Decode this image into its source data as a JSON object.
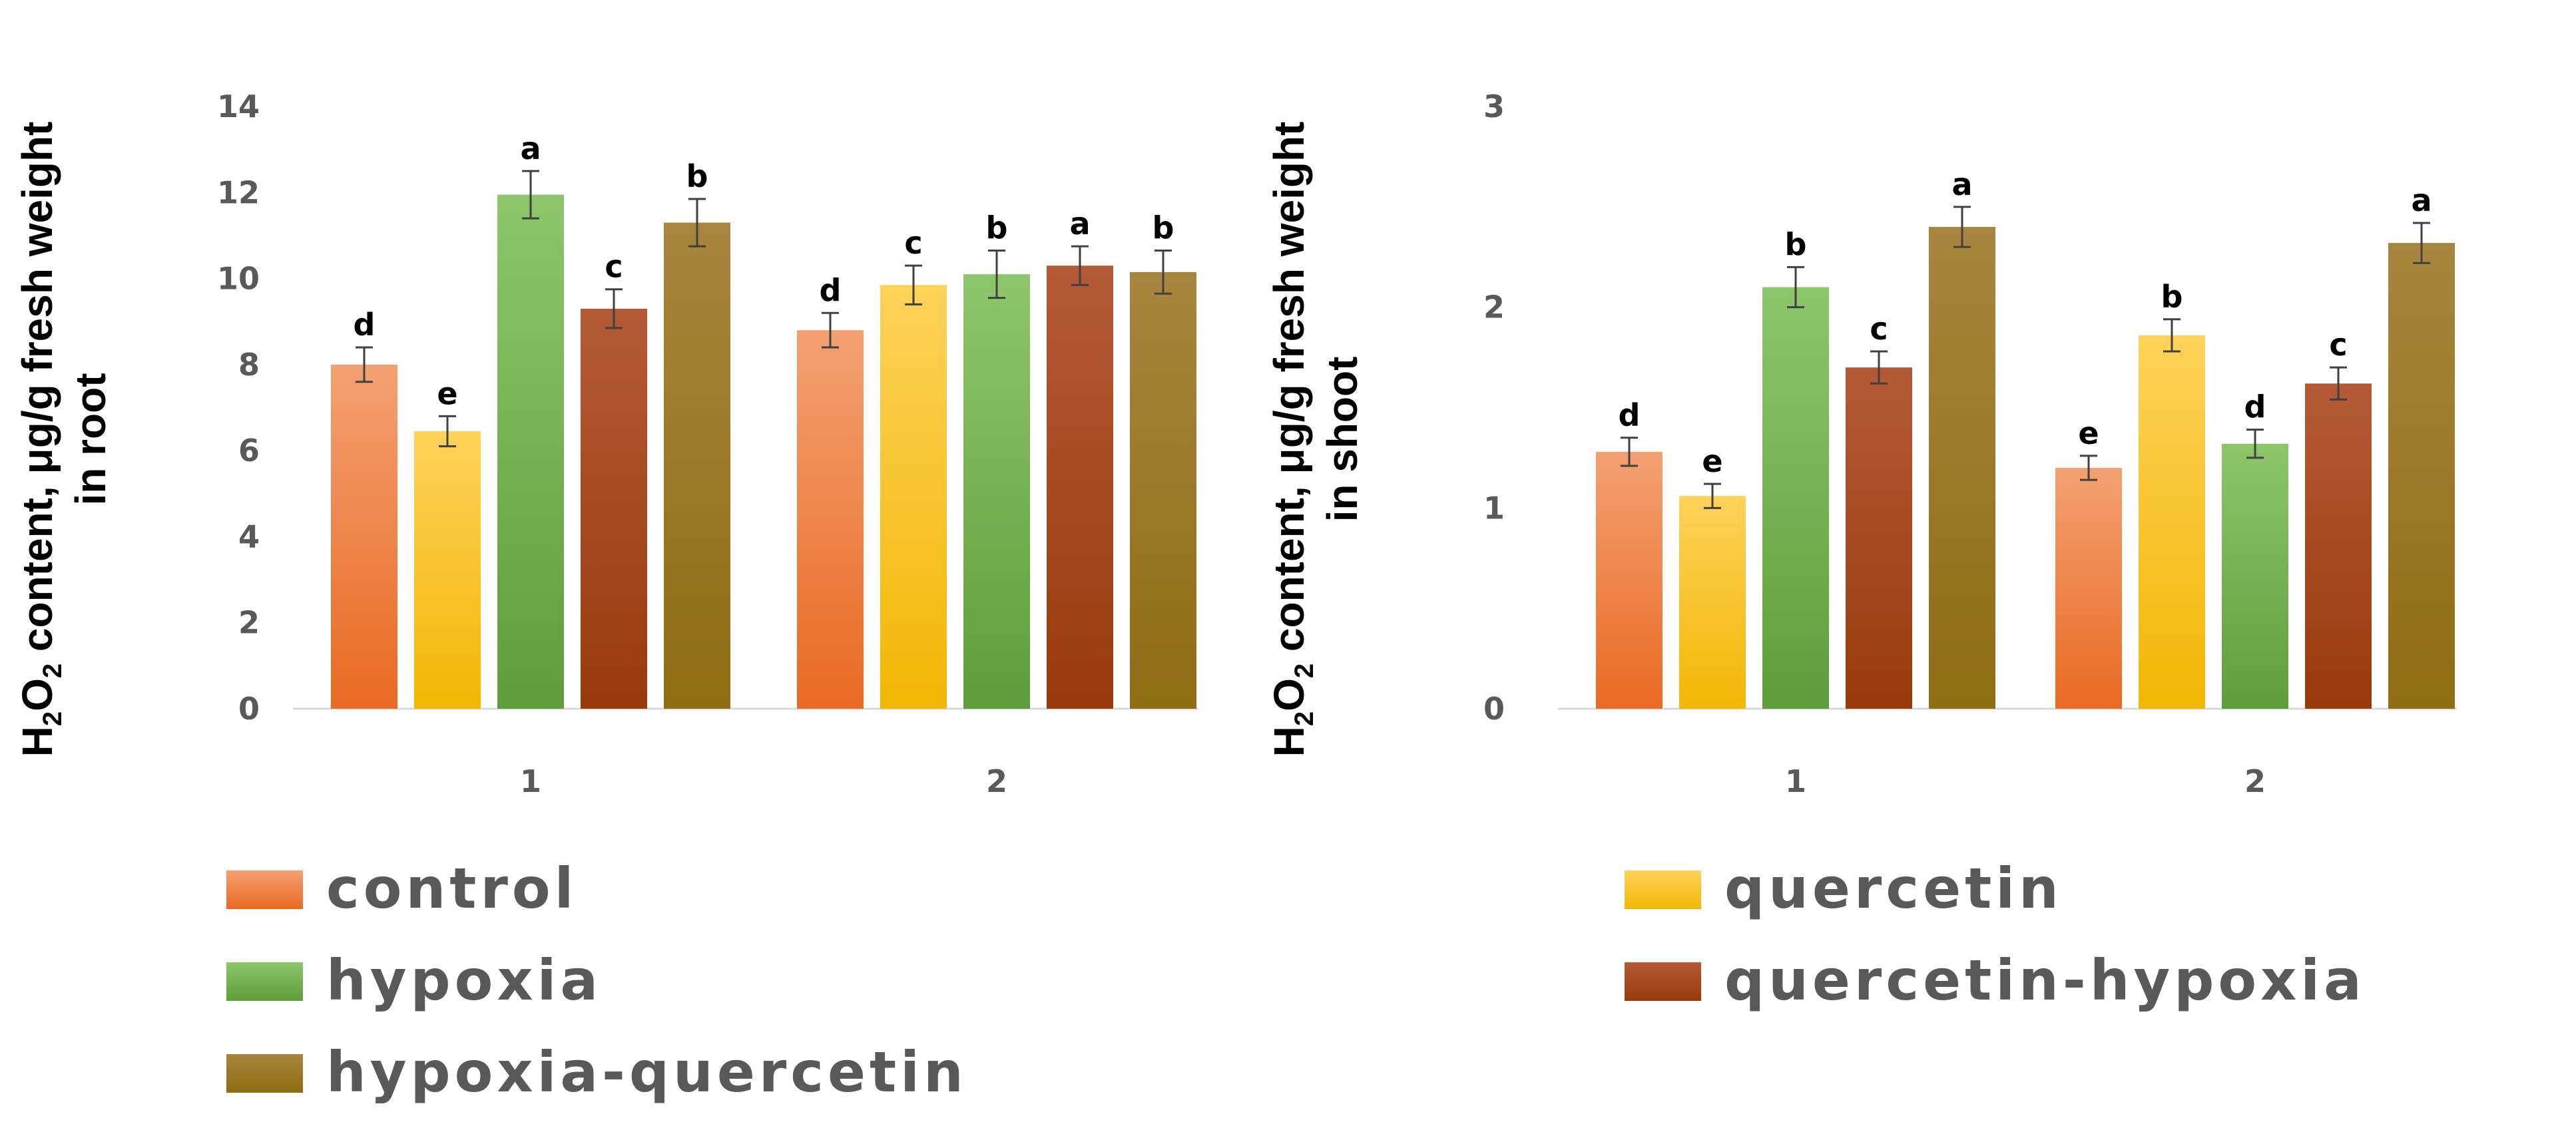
{
  "palette": {
    "control": {
      "top": "#f4a072",
      "bottom": "#e96a22"
    },
    "quercetin": {
      "top": "#ffd25a",
      "bottom": "#f2b705"
    },
    "hypoxia": {
      "top": "#8dc66c",
      "bottom": "#5e9e3a"
    },
    "quercetin-hypoxia": {
      "top": "#b45a36",
      "bottom": "#983a0c"
    },
    "hypoxia-quercetin": {
      "top": "#a8853e",
      "bottom": "#8f6d12"
    }
  },
  "legend": {
    "items": [
      {
        "key": "control",
        "label": "control"
      },
      {
        "key": "quercetin",
        "label": "quercetin"
      },
      {
        "key": "hypoxia",
        "label": "hypoxia"
      },
      {
        "key": "quercetin-hypoxia",
        "label": "quercetin-hypoxia"
      },
      {
        "key": "hypoxia-quercetin",
        "label": "hypoxia-quercetin"
      }
    ]
  },
  "chart_data": [
    {
      "type": "bar",
      "ylabel_parts": {
        "pre": "H",
        "sub": "2",
        "mid": "O",
        "sub2": "2",
        "post": " content, μg/g fresh weight"
      },
      "ylabel_line2": "in root",
      "ylim": [
        0,
        14
      ],
      "yticks": [
        0,
        2,
        4,
        6,
        8,
        10,
        12,
        14
      ],
      "grid": false,
      "categories": [
        "1",
        "2"
      ],
      "series": [
        {
          "name": "control",
          "values": [
            8.0,
            8.8
          ],
          "errors": [
            0.4,
            0.4
          ],
          "labels": [
            "d",
            "d"
          ]
        },
        {
          "name": "quercetin",
          "values": [
            6.45,
            9.85
          ],
          "errors": [
            0.35,
            0.45
          ],
          "labels": [
            "e",
            "c"
          ]
        },
        {
          "name": "hypoxia",
          "values": [
            11.95,
            10.1
          ],
          "errors": [
            0.55,
            0.55
          ],
          "labels": [
            "a",
            "b"
          ]
        },
        {
          "name": "quercetin-hypoxia",
          "values": [
            9.3,
            10.3
          ],
          "errors": [
            0.45,
            0.45
          ],
          "labels": [
            "c",
            "a"
          ]
        },
        {
          "name": "hypoxia-quercetin",
          "values": [
            11.3,
            10.15
          ],
          "errors": [
            0.55,
            0.5
          ],
          "labels": [
            "b",
            "b"
          ]
        }
      ]
    },
    {
      "type": "bar",
      "ylabel_parts": {
        "pre": "H",
        "sub": "2",
        "mid": "O",
        "sub2": "2",
        "post": " content, μg/g fresh weight"
      },
      "ylabel_line2": "in shoot",
      "ylim": [
        0,
        3
      ],
      "yticks": [
        0,
        1,
        2,
        3
      ],
      "grid": false,
      "categories": [
        "1",
        "2"
      ],
      "series": [
        {
          "name": "control",
          "values": [
            1.28,
            1.2
          ],
          "errors": [
            0.07,
            0.06
          ],
          "labels": [
            "d",
            "e"
          ]
        },
        {
          "name": "quercetin",
          "values": [
            1.06,
            1.86
          ],
          "errors": [
            0.06,
            0.08
          ],
          "labels": [
            "e",
            "b"
          ]
        },
        {
          "name": "hypoxia",
          "values": [
            2.1,
            1.32
          ],
          "errors": [
            0.1,
            0.07
          ],
          "labels": [
            "b",
            "d"
          ]
        },
        {
          "name": "quercetin-hypoxia",
          "values": [
            1.7,
            1.62
          ],
          "errors": [
            0.08,
            0.08
          ],
          "labels": [
            "c",
            "c"
          ]
        },
        {
          "name": "hypoxia-quercetin",
          "values": [
            2.4,
            2.32
          ],
          "errors": [
            0.1,
            0.1
          ],
          "labels": [
            "a",
            "a"
          ]
        }
      ]
    }
  ]
}
